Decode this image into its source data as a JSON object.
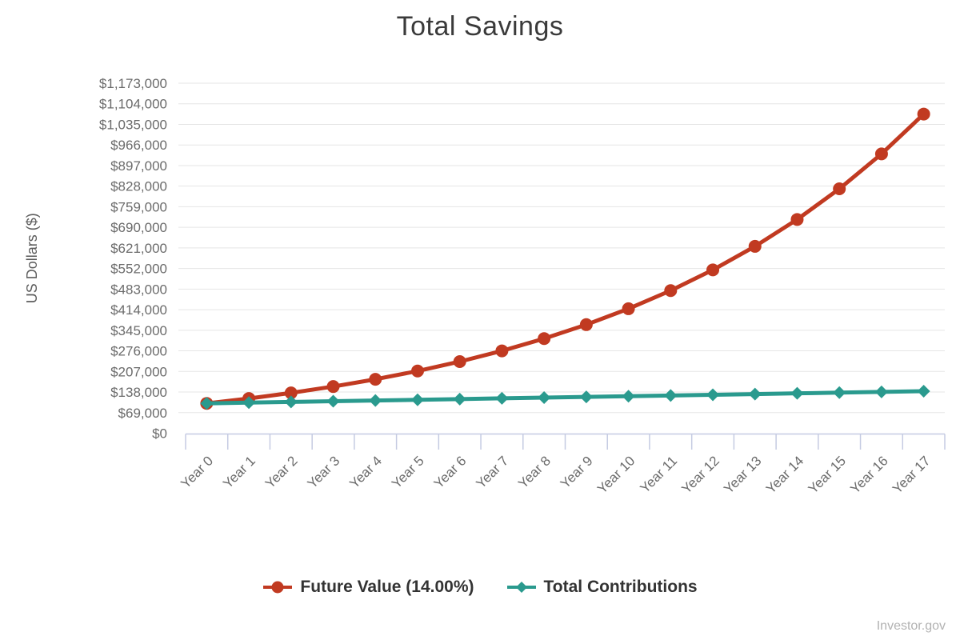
{
  "chart_data": {
    "type": "line",
    "title": "Total Savings",
    "ylabel": "US Dollars ($)",
    "xlabel": "",
    "x_categories": [
      "Year 0",
      "Year 1",
      "Year 2",
      "Year 3",
      "Year 4",
      "Year 5",
      "Year 6",
      "Year 7",
      "Year 8",
      "Year 9",
      "Year 10",
      "Year 11",
      "Year 12",
      "Year 13",
      "Year 14",
      "Year 15",
      "Year 16",
      "Year 17"
    ],
    "y_axis": {
      "min": 0,
      "max": 1173000,
      "tick_step": 69000,
      "tick_labels": [
        "$0",
        "$69,000",
        "$138,000",
        "$207,000",
        "$276,000",
        "$345,000",
        "$414,000",
        "$483,000",
        "$552,000",
        "$621,000",
        "$690,000",
        "$759,000",
        "$828,000",
        "$897,000",
        "$966,000",
        "$1,035,000",
        "$1,104,000",
        "$1,173,000"
      ]
    },
    "grid": "horizontal-only",
    "legend_position": "bottom",
    "series": [
      {
        "name": "Future Value (14.00%)",
        "color": "#c13a21",
        "marker": "circle",
        "values": [
          100000,
          116400,
          135096,
          156409,
          180707,
          208406,
          239983,
          275980,
          317017,
          363800,
          417132,
          477930,
          547240,
          626254,
          716329,
          819015,
          936077,
          1069528
        ]
      },
      {
        "name": "Total Contributions",
        "color": "#2a9a8e",
        "marker": "diamond",
        "values": [
          100000,
          102400,
          104800,
          107200,
          109600,
          112000,
          114400,
          116800,
          119200,
          121600,
          124000,
          126400,
          128800,
          131200,
          133600,
          136000,
          138400,
          140800
        ]
      }
    ],
    "source": "Investor.gov"
  }
}
